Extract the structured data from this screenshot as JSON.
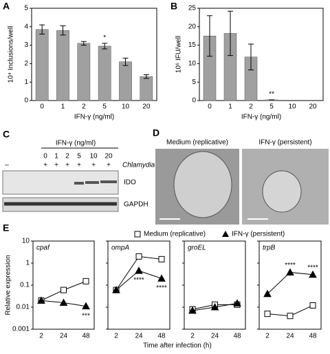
{
  "chart_data": [
    {
      "type": "bar",
      "panel": "A",
      "y_label": "10⁴ Inclusions/well",
      "x_label": "IFN-γ (ng/ml)",
      "categories": [
        "0",
        "1",
        "2",
        "5",
        "10",
        "20"
      ],
      "values": [
        3.85,
        3.8,
        3.1,
        2.95,
        2.1,
        1.3
      ],
      "errors": [
        0.25,
        0.25,
        0.1,
        0.15,
        0.2,
        0.1
      ],
      "color": "#a0a0a0",
      "ylim": [
        0,
        5
      ],
      "yticks": [
        0,
        1,
        2,
        3,
        4,
        5
      ],
      "annotations": [
        "*"
      ]
    },
    {
      "type": "bar",
      "panel": "B",
      "y_label": "10⁶ IFU/well",
      "x_label": "IFN-γ (ng/ml)",
      "categories": [
        "0",
        "1",
        "2",
        "5",
        "10",
        "20"
      ],
      "values": [
        17.5,
        18.2,
        11.8,
        0.2,
        0,
        0
      ],
      "errors": [
        5.5,
        6,
        3.5,
        0,
        0,
        0
      ],
      "color": "#a0a0a0",
      "ylim": [
        0,
        25
      ],
      "yticks": [
        0,
        5,
        10,
        15,
        20,
        25
      ],
      "annotations": [
        "**"
      ]
    },
    {
      "type": "line",
      "title": "cpaf",
      "log_y": true,
      "categories": [
        "2",
        "24",
        "48"
      ],
      "ylim": [
        0.001,
        10
      ],
      "yticks": [
        0.001,
        0.01,
        0.1,
        1,
        10
      ],
      "series": [
        {
          "name": "Medium (replicative)",
          "color": "#ffffff",
          "values": [
            0.02,
            0.06,
            0.15
          ]
        },
        {
          "name": "IFN-γ (persistent)",
          "color": "#000000",
          "values": [
            0.02,
            0.016,
            0.011
          ]
        }
      ],
      "annotations": [
        "***"
      ]
    },
    {
      "type": "line",
      "title": "ompA",
      "log_y": true,
      "categories": [
        "2",
        "24",
        "48"
      ],
      "ylim": [
        0.001,
        10
      ],
      "yticks": [
        0.001,
        0.01,
        0.1,
        1,
        10
      ],
      "series": [
        {
          "name": "Medium (replicative)",
          "color": "#ffffff",
          "values": [
            0.06,
            2.0,
            1.5
          ]
        },
        {
          "name": "IFN-γ (persistent)",
          "color": "#000000",
          "values": [
            0.06,
            0.45,
            0.2
          ]
        }
      ],
      "annotations": [
        "****",
        "****"
      ]
    },
    {
      "type": "line",
      "title": "groEL",
      "log_y": true,
      "categories": [
        "2",
        "24",
        "48"
      ],
      "ylim": [
        0.001,
        10
      ],
      "yticks": [
        0.001,
        0.01,
        0.1,
        1,
        10
      ],
      "series": [
        {
          "name": "Medium (replicative)",
          "color": "#ffffff",
          "values": [
            0.008,
            0.013,
            0.013
          ]
        },
        {
          "name": "IFN-γ (persistent)",
          "color": "#000000",
          "values": [
            0.007,
            0.01,
            0.015
          ]
        }
      ],
      "annotations": []
    },
    {
      "type": "line",
      "title": "trpB",
      "log_y": true,
      "categories": [
        "2",
        "24",
        "48"
      ],
      "ylim": [
        0.001,
        10
      ],
      "yticks": [
        0.001,
        0.01,
        0.1,
        1,
        10
      ],
      "series": [
        {
          "name": "Medium (replicative)",
          "color": "#ffffff",
          "values": [
            0.005,
            0.004,
            0.012
          ]
        },
        {
          "name": "IFN-γ (persistent)",
          "color": "#000000",
          "values": [
            0.04,
            0.38,
            0.3
          ]
        }
      ],
      "annotations": [
        "****",
        "****"
      ]
    }
  ],
  "panel_c": {
    "label": "C",
    "header": "IFN-γ (ng/ml)",
    "doses": [
      "0",
      "1",
      "2",
      "5",
      "10",
      "20"
    ],
    "infection": [
      "–",
      "+",
      "+",
      "+",
      "+",
      "+",
      "+"
    ],
    "organism": "Chlamydia",
    "blots": [
      "IDO",
      "GAPDH"
    ]
  },
  "panel_d": {
    "label": "D",
    "images": [
      "Medium (replicative)",
      "IFN-γ (persistent)"
    ]
  },
  "panel_e": {
    "label": "E",
    "y_label": "Relative expression",
    "x_label": "Time after infection (h)"
  }
}
